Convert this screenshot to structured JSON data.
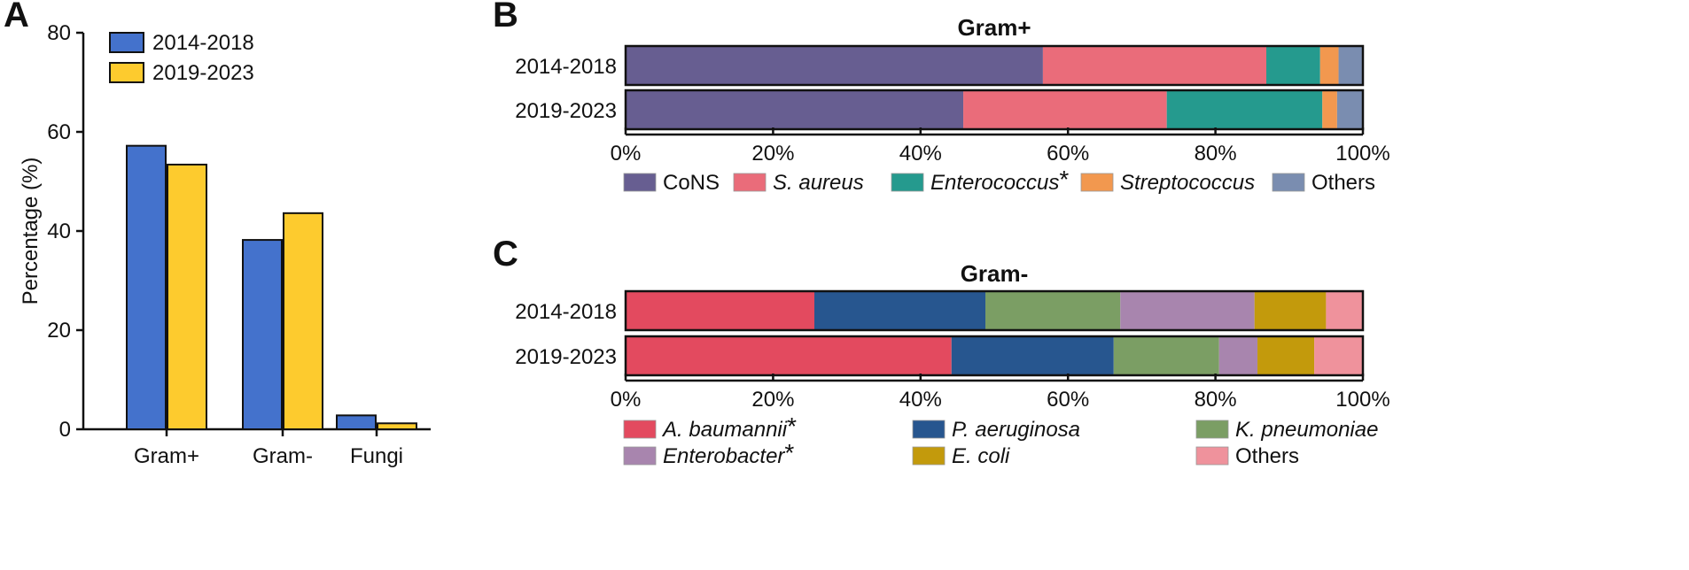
{
  "figure": {
    "panel_labels": [
      "A",
      "B",
      "C"
    ]
  },
  "chart_data": [
    {
      "panel": "A",
      "type": "bar",
      "title": "",
      "xlabel": "",
      "ylabel": "Percentage (%)",
      "ylim": [
        0,
        80
      ],
      "yticks": [
        "0",
        "20",
        "40",
        "60",
        "80"
      ],
      "categories": [
        "Gram+",
        "Gram-",
        "Fungi"
      ],
      "legend_position": "top-left",
      "series": [
        {
          "name": "2014-2018",
          "color": "#4472CC",
          "values": [
            57.2,
            38.2,
            2.8
          ]
        },
        {
          "name": "2019-2023",
          "color": "#FDCB2E",
          "values": [
            53.4,
            43.6,
            1.2
          ]
        }
      ]
    },
    {
      "panel": "B",
      "type": "bar",
      "orientation": "horizontal-stacked",
      "title": "Gram+",
      "categories": [
        "2014-2018",
        "2019-2023"
      ],
      "xlim": [
        0,
        100
      ],
      "xticks": [
        "0%",
        "20%",
        "40%",
        "60%",
        "80%",
        "100%"
      ],
      "legend_position": "bottom",
      "series": [
        {
          "name": "CoNS",
          "italic": false,
          "star": "",
          "color": "#675E91",
          "values": [
            56.6,
            45.8
          ]
        },
        {
          "name": "S. aureus",
          "italic": true,
          "star": "",
          "color": "#EA6C7A",
          "values": [
            30.3,
            27.6
          ]
        },
        {
          "name": "Enterococcus",
          "italic": true,
          "star": "*",
          "color": "#259A8E",
          "values": [
            7.3,
            21.1
          ]
        },
        {
          "name": "Streptococcus",
          "italic": true,
          "star": "",
          "color": "#F2984F",
          "values": [
            2.5,
            2.0
          ]
        },
        {
          "name": "Others",
          "italic": false,
          "star": "",
          "color": "#7A8DB0",
          "values": [
            3.3,
            3.5
          ]
        }
      ]
    },
    {
      "panel": "C",
      "type": "bar",
      "orientation": "horizontal-stacked",
      "title": "Gram-",
      "categories": [
        "2014-2018",
        "2019-2023"
      ],
      "xlim": [
        0,
        100
      ],
      "xticks": [
        "0%",
        "20%",
        "40%",
        "60%",
        "80%",
        "100%"
      ],
      "legend_position": "bottom",
      "series": [
        {
          "name": "A. baumannii",
          "italic": true,
          "star": "*",
          "color": "#E34A5F",
          "values": [
            25.6,
            44.2
          ]
        },
        {
          "name": "P. aeruginosa",
          "italic": true,
          "star": "",
          "color": "#27568F",
          "values": [
            23.2,
            22.0
          ]
        },
        {
          "name": "K. pneumoniae",
          "italic": true,
          "star": "",
          "color": "#7B9E64",
          "values": [
            18.3,
            14.3
          ]
        },
        {
          "name": "Enterobacter",
          "italic": true,
          "star": "*",
          "color": "#A885AE",
          "values": [
            18.2,
            5.2
          ]
        },
        {
          "name": "E. coli",
          "italic": true,
          "star": "",
          "color": "#C39A0C",
          "values": [
            9.7,
            7.7
          ]
        },
        {
          "name": "Others",
          "italic": false,
          "star": "",
          "color": "#EF929C",
          "values": [
            5.0,
            6.6
          ]
        }
      ]
    }
  ]
}
